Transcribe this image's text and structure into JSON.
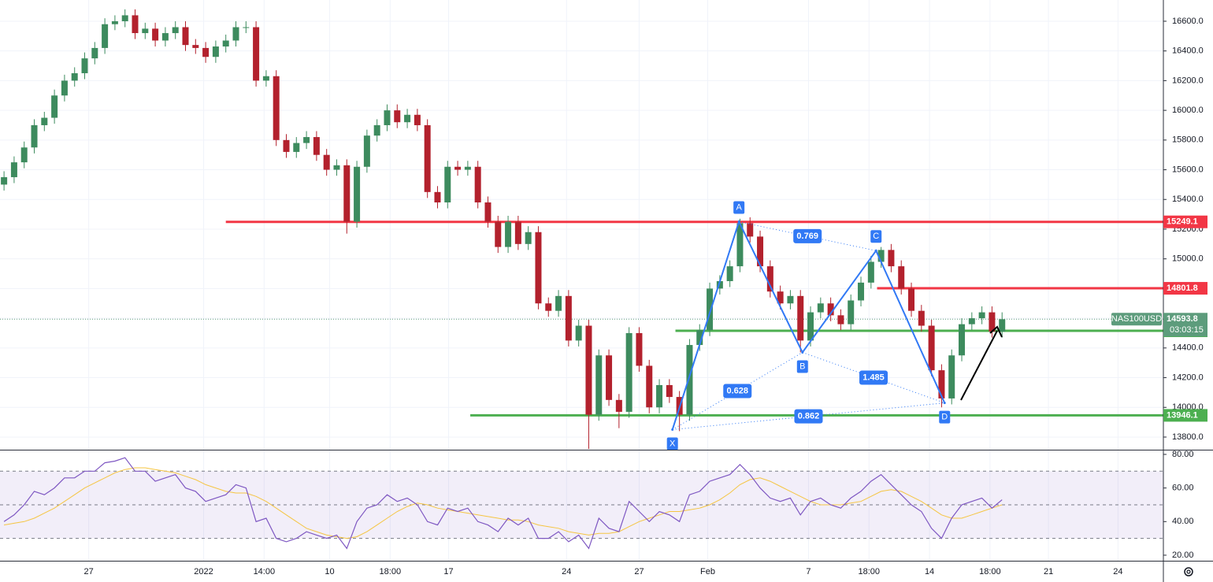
{
  "chart_data": {
    "type": "candlestick",
    "symbol": "NAS100USD",
    "countdown": "03:03:15",
    "up_color": "#3d8b5e",
    "down_color": "#b3212d",
    "grid": true,
    "open": [
      15500,
      15550,
      15650,
      15750,
      15900,
      15950,
      16100,
      16200,
      16250,
      16350,
      16420,
      16580,
      16600,
      16640,
      16520,
      16550,
      16470,
      16520,
      16560,
      16440,
      16420,
      16360,
      16430,
      16470,
      16560,
      16560,
      16200,
      16230,
      15800,
      15720,
      15780,
      15820,
      15700,
      15600,
      15630,
      15250,
      15620,
      15830,
      15900,
      16000,
      15920,
      15970,
      15900,
      15450,
      15380,
      15620,
      15600,
      15620,
      15380,
      15250,
      15080,
      15250,
      15100,
      15180,
      14700,
      14650,
      14750,
      14450,
      14550,
      13950,
      14350,
      14050,
      13970,
      14500,
      14280,
      14000,
      14150,
      14070,
      13950,
      14420,
      14520,
      14800,
      14850,
      14950,
      15240,
      15150,
      14950,
      14780,
      14700,
      14750,
      14450,
      14640,
      14700,
      14620,
      14560,
      14720,
      14840,
      14980,
      15060,
      14950,
      14800,
      14650,
      14550,
      14250,
      14060,
      14350,
      14560,
      14600,
      14640,
      14510
    ],
    "high": [
      15590,
      15690,
      15790,
      15940,
      15990,
      16140,
      16240,
      16290,
      16390,
      16460,
      16620,
      16640,
      16680,
      16680,
      16590,
      16590,
      16560,
      16600,
      16600,
      16480,
      16460,
      16470,
      16510,
      16600,
      16600,
      16600,
      16270,
      16270,
      15840,
      15820,
      15860,
      15860,
      15740,
      15670,
      15670,
      15660,
      15870,
      15940,
      16040,
      16040,
      16010,
      16010,
      15940,
      15490,
      15660,
      15660,
      15660,
      15660,
      15420,
      15290,
      15290,
      15290,
      15220,
      15220,
      14740,
      14790,
      14790,
      14590,
      14590,
      14390,
      14390,
      14090,
      14540,
      14540,
      14320,
      14190,
      14190,
      14110,
      14460,
      14560,
      14840,
      14890,
      14990,
      15270,
      15280,
      15190,
      14990,
      14820,
      14790,
      14790,
      14680,
      14740,
      14740,
      14660,
      14760,
      14880,
      15020,
      15080,
      15100,
      14990,
      14840,
      14690,
      14590,
      14290,
      14390,
      14600,
      14640,
      14680,
      14680,
      14640
    ],
    "low": [
      15460,
      15510,
      15610,
      15710,
      15860,
      15910,
      16060,
      16160,
      16210,
      16310,
      16380,
      16540,
      16560,
      16480,
      16480,
      16430,
      16430,
      16480,
      16400,
      16380,
      16320,
      16320,
      16390,
      16430,
      16520,
      16160,
      16160,
      15760,
      15680,
      15680,
      15740,
      15660,
      15560,
      15560,
      15170,
      15210,
      15580,
      15790,
      15860,
      15880,
      15880,
      15860,
      15410,
      15340,
      15340,
      15560,
      15560,
      15340,
      15210,
      15040,
      15040,
      15060,
      15060,
      14660,
      14610,
      14610,
      14410,
      14410,
      13720,
      13910,
      14010,
      13860,
      13930,
      14240,
      13960,
      13960,
      14030,
      13840,
      13910,
      14380,
      14480,
      14760,
      14810,
      14910,
      15110,
      14910,
      14740,
      14660,
      14660,
      14370,
      14410,
      14600,
      14580,
      14520,
      14520,
      14680,
      14800,
      14940,
      14910,
      14760,
      14610,
      14510,
      14210,
      14000,
      14020,
      14310,
      14520,
      14560,
      14470,
      14470
    ],
    "close": [
      15550,
      15650,
      15750,
      15900,
      15950,
      16100,
      16200,
      16250,
      16350,
      16420,
      16580,
      16600,
      16640,
      16520,
      16550,
      16470,
      16520,
      16560,
      16440,
      16420,
      16360,
      16430,
      16470,
      16560,
      16560,
      16200,
      16230,
      15800,
      15720,
      15780,
      15820,
      15700,
      15600,
      15630,
      15250,
      15620,
      15830,
      15900,
      16000,
      15920,
      15970,
      15900,
      15450,
      15380,
      15620,
      15600,
      15620,
      15380,
      15250,
      15080,
      15250,
      15100,
      15180,
      14700,
      14650,
      14750,
      14450,
      14550,
      13950,
      14350,
      14050,
      13970,
      14500,
      14280,
      14000,
      14150,
      14070,
      13950,
      14420,
      14520,
      14800,
      14850,
      14950,
      15240,
      15150,
      14950,
      14780,
      14700,
      14750,
      14450,
      14640,
      14700,
      14620,
      14560,
      14720,
      14840,
      14980,
      15060,
      14950,
      14800,
      14650,
      14550,
      14250,
      14060,
      14350,
      14560,
      14600,
      14640,
      14510,
      14593.8
    ],
    "ylim": [
      13715,
      16743
    ],
    "yticks": [
      {
        "value": 13800,
        "label": "13800.0"
      },
      {
        "value": 14000,
        "label": "14000.0"
      },
      {
        "value": 14200,
        "label": "14200.0"
      },
      {
        "value": 14400,
        "label": "14400.0"
      },
      {
        "value": 14600,
        "label": "14600.0"
      },
      {
        "value": 14800,
        "label": "14800.0"
      },
      {
        "value": 15000,
        "label": "15000.0"
      },
      {
        "value": 15200,
        "label": "15200.0"
      },
      {
        "value": 15400,
        "label": "15400.0"
      },
      {
        "value": 15600,
        "label": "15600.0"
      },
      {
        "value": 15800,
        "label": "15800.0"
      },
      {
        "value": 16000,
        "label": "16000.0"
      },
      {
        "value": 16200,
        "label": "16200.0"
      },
      {
        "value": 16400,
        "label": "16400.0"
      },
      {
        "value": 16600,
        "label": "16600.0"
      }
    ],
    "xlim": [
      -0.4,
      115
    ],
    "xticks": [
      {
        "value": 8.4,
        "label": "27"
      },
      {
        "value": 19.8,
        "label": "2022"
      },
      {
        "value": 25.8,
        "label": "14:00"
      },
      {
        "value": 32.3,
        "label": "10"
      },
      {
        "value": 38.3,
        "label": "18:00"
      },
      {
        "value": 44.1,
        "label": "17"
      },
      {
        "value": 55.8,
        "label": "24"
      },
      {
        "value": 63.0,
        "label": "27"
      },
      {
        "value": 69.8,
        "label": "Feb"
      },
      {
        "value": 79.8,
        "label": "7"
      },
      {
        "value": 85.8,
        "label": "18:00"
      },
      {
        "value": 91.8,
        "label": "14"
      },
      {
        "value": 97.8,
        "label": "18:00"
      },
      {
        "value": 103.6,
        "label": "21"
      },
      {
        "value": 110.5,
        "label": "24"
      }
    ],
    "levels": [
      {
        "value": 15249.1,
        "from": 22.0,
        "color": "#f23645"
      },
      {
        "value": 14801.8,
        "from": 86.6,
        "color": "#f23645"
      },
      {
        "value": 14515.6,
        "from": 66.6,
        "color": "#4caf50"
      },
      {
        "value": 13946.1,
        "from": 46.25,
        "color": "#4caf50"
      }
    ],
    "last_price": 14593.8,
    "last_color": "#5d9c7c",
    "pattern": {
      "color": "#3179f5",
      "points": [
        {
          "label": "X",
          "x": 66.3,
          "y": 13850
        },
        {
          "label": "A",
          "x": 72.9,
          "y": 15250
        },
        {
          "label": "B",
          "x": 79.2,
          "y": 14370
        },
        {
          "label": "C",
          "x": 86.5,
          "y": 15055
        },
        {
          "label": "D",
          "x": 93.3,
          "y": 14030
        }
      ],
      "ratios": [
        0.769,
        0.628,
        1.485,
        0.862
      ]
    },
    "rsi": {
      "color": "#7e57c2",
      "ma_color": "#f5c542",
      "ylim": [
        16.7,
        82.8
      ],
      "yticks": [
        {
          "value": 20,
          "label": "20.00"
        },
        {
          "value": 40,
          "label": "40.00"
        },
        {
          "value": 60,
          "label": "60.00"
        },
        {
          "value": 80,
          "label": "80.00"
        }
      ],
      "levels": [
        30,
        50,
        70
      ],
      "values": [
        40,
        44,
        50,
        58,
        56,
        60,
        66,
        66,
        70,
        70,
        75,
        76,
        78,
        70,
        70,
        64,
        66,
        68,
        60,
        58,
        52,
        54,
        56,
        62,
        60,
        40,
        42,
        30,
        28,
        30,
        34,
        32,
        30,
        32,
        24,
        40,
        48,
        50,
        56,
        52,
        54,
        50,
        40,
        38,
        48,
        46,
        48,
        40,
        38,
        34,
        42,
        38,
        42,
        30,
        30,
        34,
        28,
        32,
        24,
        42,
        36,
        34,
        52,
        46,
        40,
        46,
        44,
        40,
        56,
        58,
        64,
        66,
        68,
        74,
        68,
        60,
        54,
        52,
        54,
        44,
        52,
        54,
        50,
        48,
        54,
        58,
        64,
        68,
        62,
        56,
        50,
        46,
        36,
        30,
        42,
        50,
        52,
        54,
        48,
        53
      ],
      "ma": [
        38,
        39,
        40,
        42,
        45,
        48,
        52,
        56,
        60,
        63,
        66,
        69,
        71,
        72,
        72,
        71,
        70,
        69,
        67,
        65,
        62,
        60,
        58,
        57,
        57,
        55,
        52,
        48,
        44,
        40,
        36,
        34,
        32,
        31,
        30,
        31,
        34,
        38,
        42,
        46,
        49,
        51,
        50,
        48,
        47,
        46,
        45,
        44,
        43,
        42,
        41,
        41,
        40,
        38,
        37,
        36,
        34,
        33,
        32,
        33,
        33,
        34,
        37,
        40,
        42,
        44,
        46,
        46,
        47,
        48,
        50,
        53,
        57,
        62,
        65,
        66,
        64,
        61,
        58,
        55,
        52,
        50,
        50,
        50,
        51,
        52,
        55,
        58,
        59,
        58,
        55,
        52,
        48,
        44,
        42,
        42,
        44,
        46,
        48,
        50
      ]
    }
  }
}
